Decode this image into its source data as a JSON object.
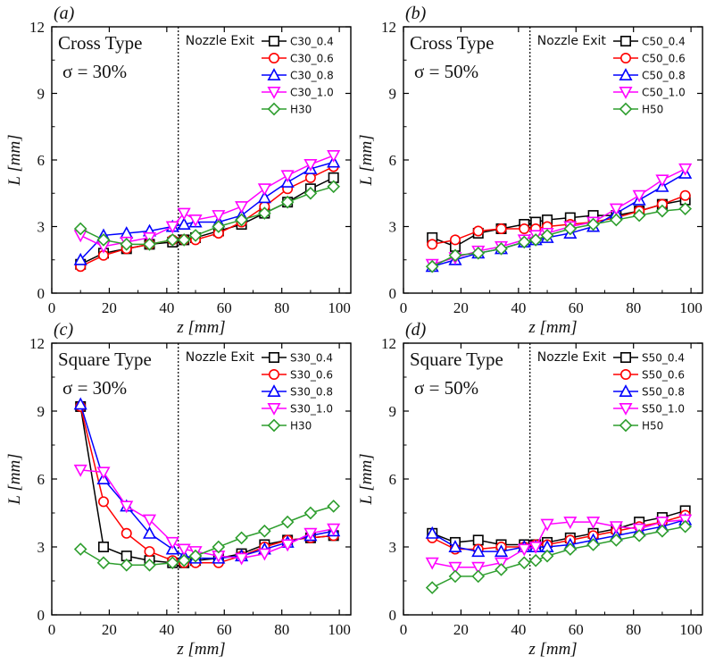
{
  "chart_data": [
    {
      "type": "line",
      "panel_label": "(a)",
      "type_label": "Cross Type",
      "sigma_label": "σ = 30%",
      "annotation": "Nozzle Exit",
      "exit_z": 44,
      "xlabel": "z [mm]",
      "ylabel": "L [mm]",
      "xlim": [
        0,
        104
      ],
      "ylim": [
        0,
        12
      ],
      "xticks": [
        0,
        20,
        40,
        60,
        80,
        100
      ],
      "yticks": [
        0,
        3,
        6,
        9,
        12
      ],
      "legend_position": "top-right",
      "series": [
        {
          "name": "C30_0.4",
          "color": "#000000",
          "marker": "square",
          "x": [
            10,
            18,
            26,
            34,
            42,
            46,
            50,
            58,
            66,
            74,
            82,
            90,
            98
          ],
          "y": [
            1.3,
            1.8,
            2.0,
            2.2,
            2.3,
            2.4,
            2.5,
            2.8,
            3.1,
            3.6,
            4.1,
            4.7,
            5.2
          ]
        },
        {
          "name": "C30_0.6",
          "color": "#ff0000",
          "marker": "circle",
          "x": [
            10,
            18,
            26,
            34,
            42,
            46,
            50,
            58,
            66,
            74,
            82,
            90,
            98
          ],
          "y": [
            1.2,
            1.7,
            2.0,
            2.2,
            2.4,
            2.4,
            2.4,
            2.7,
            3.2,
            3.9,
            4.7,
            5.2,
            5.7
          ]
        },
        {
          "name": "C30_0.8",
          "color": "#0000ff",
          "marker": "triangle-up",
          "x": [
            10,
            18,
            26,
            34,
            42,
            46,
            50,
            58,
            66,
            74,
            82,
            90,
            98
          ],
          "y": [
            1.5,
            2.6,
            2.7,
            2.8,
            3.0,
            3.1,
            3.2,
            3.2,
            3.5,
            4.3,
            5.0,
            5.6,
            5.9
          ]
        },
        {
          "name": "C30_1.0",
          "color": "#ff00ff",
          "marker": "triangle-down",
          "x": [
            10,
            18,
            26,
            34,
            42,
            46,
            50,
            58,
            66,
            74,
            82,
            90,
            98
          ],
          "y": [
            2.6,
            2.1,
            2.3,
            2.5,
            3.0,
            3.6,
            3.3,
            3.5,
            3.9,
            4.7,
            5.3,
            5.8,
            6.2
          ]
        },
        {
          "name": "H30",
          "color": "#2e9e2e",
          "marker": "diamond",
          "x": [
            10,
            18,
            26,
            34,
            42,
            46,
            50,
            58,
            66,
            74,
            82,
            90,
            98
          ],
          "y": [
            2.9,
            2.4,
            2.2,
            2.2,
            2.4,
            2.4,
            2.6,
            3.0,
            3.3,
            3.6,
            4.1,
            4.5,
            4.8
          ]
        }
      ]
    },
    {
      "type": "line",
      "panel_label": "(b)",
      "type_label": "Cross Type",
      "sigma_label": "σ = 50%",
      "annotation": "Nozzle Exit",
      "exit_z": 44,
      "xlabel": "z [mm]",
      "ylabel": "L [mm]",
      "xlim": [
        0,
        104
      ],
      "ylim": [
        0,
        12
      ],
      "xticks": [
        0,
        20,
        40,
        60,
        80,
        100
      ],
      "yticks": [
        0,
        3,
        6,
        9,
        12
      ],
      "legend_position": "top-right",
      "series": [
        {
          "name": "C50_0.4",
          "color": "#000000",
          "marker": "square",
          "x": [
            10,
            18,
            26,
            34,
            42,
            46,
            50,
            58,
            66,
            74,
            82,
            90,
            98
          ],
          "y": [
            2.5,
            2.1,
            2.7,
            2.9,
            3.1,
            3.2,
            3.3,
            3.4,
            3.5,
            3.5,
            3.7,
            4.0,
            4.2
          ]
        },
        {
          "name": "C50_0.6",
          "color": "#ff0000",
          "marker": "circle",
          "x": [
            10,
            18,
            26,
            34,
            42,
            46,
            50,
            58,
            66,
            74,
            82,
            90,
            98
          ],
          "y": [
            2.2,
            2.4,
            2.8,
            2.9,
            2.9,
            2.9,
            3.0,
            3.1,
            3.2,
            3.4,
            3.7,
            4.0,
            4.4
          ]
        },
        {
          "name": "C50_0.8",
          "color": "#0000ff",
          "marker": "triangle-up",
          "x": [
            10,
            18,
            26,
            34,
            42,
            46,
            50,
            58,
            66,
            74,
            82,
            90,
            98
          ],
          "y": [
            1.2,
            1.5,
            1.8,
            2.0,
            2.3,
            2.4,
            2.5,
            2.7,
            3.0,
            3.6,
            4.2,
            4.8,
            5.4
          ]
        },
        {
          "name": "C50_1.0",
          "color": "#ff00ff",
          "marker": "triangle-down",
          "x": [
            10,
            18,
            26,
            34,
            42,
            46,
            50,
            58,
            66,
            74,
            82,
            90,
            98
          ],
          "y": [
            1.3,
            1.6,
            1.9,
            2.1,
            2.4,
            2.6,
            2.7,
            3.0,
            3.2,
            3.8,
            4.4,
            5.1,
            5.6
          ]
        },
        {
          "name": "H50",
          "color": "#2e9e2e",
          "marker": "diamond",
          "x": [
            10,
            18,
            26,
            34,
            42,
            46,
            50,
            58,
            66,
            74,
            82,
            90,
            98
          ],
          "y": [
            1.2,
            1.7,
            1.8,
            2.0,
            2.3,
            2.4,
            2.6,
            2.9,
            3.1,
            3.3,
            3.5,
            3.7,
            3.8
          ]
        }
      ]
    },
    {
      "type": "line",
      "panel_label": "(c)",
      "type_label": "Square Type",
      "sigma_label": "σ = 30%",
      "annotation": "Nozzle Exit",
      "exit_z": 44,
      "xlabel": "z [mm]",
      "ylabel": "L [mm]",
      "xlim": [
        0,
        104
      ],
      "ylim": [
        0,
        12
      ],
      "xticks": [
        0,
        20,
        40,
        60,
        80,
        100
      ],
      "yticks": [
        0,
        3,
        6,
        9,
        12
      ],
      "legend_position": "top-right",
      "series": [
        {
          "name": "S30_0.4",
          "color": "#000000",
          "marker": "square",
          "x": [
            10,
            18,
            26,
            34,
            42,
            46,
            50,
            58,
            66,
            74,
            82,
            90,
            98
          ],
          "y": [
            9.2,
            3.0,
            2.6,
            2.4,
            2.3,
            2.3,
            2.4,
            2.5,
            2.7,
            3.1,
            3.3,
            3.4,
            3.5
          ]
        },
        {
          "name": "S30_0.6",
          "color": "#ff0000",
          "marker": "circle",
          "x": [
            10,
            18,
            26,
            34,
            42,
            46,
            50,
            58,
            66,
            74,
            82,
            90,
            98
          ],
          "y": [
            9.2,
            5.0,
            3.6,
            2.8,
            2.4,
            2.3,
            2.3,
            2.3,
            2.6,
            3.0,
            3.3,
            3.4,
            3.5
          ]
        },
        {
          "name": "S30_0.8",
          "color": "#0000ff",
          "marker": "triangle-up",
          "x": [
            10,
            18,
            26,
            34,
            42,
            46,
            50,
            58,
            66,
            74,
            82,
            90,
            98
          ],
          "y": [
            9.3,
            6.0,
            4.8,
            3.6,
            2.9,
            2.6,
            2.5,
            2.5,
            2.6,
            2.9,
            3.2,
            3.5,
            3.7
          ]
        },
        {
          "name": "S30_1.0",
          "color": "#ff00ff",
          "marker": "triangle-down",
          "x": [
            10,
            18,
            26,
            34,
            42,
            46,
            50,
            58,
            66,
            74,
            82,
            90,
            98
          ],
          "y": [
            6.4,
            6.3,
            4.8,
            4.2,
            3.2,
            2.9,
            2.8,
            2.6,
            2.5,
            2.7,
            3.1,
            3.6,
            3.8
          ]
        },
        {
          "name": "H30",
          "color": "#2e9e2e",
          "marker": "diamond",
          "x": [
            10,
            18,
            26,
            34,
            42,
            46,
            50,
            58,
            66,
            74,
            82,
            90,
            98
          ],
          "y": [
            2.9,
            2.3,
            2.2,
            2.2,
            2.3,
            2.4,
            2.6,
            3.0,
            3.4,
            3.7,
            4.1,
            4.5,
            4.8
          ]
        }
      ]
    },
    {
      "type": "line",
      "panel_label": "(d)",
      "type_label": "Square Type",
      "sigma_label": "σ = 50%",
      "annotation": "Nozzle Exit",
      "exit_z": 44,
      "xlabel": "z [mm]",
      "ylabel": "L [mm]",
      "xlim": [
        0,
        104
      ],
      "ylim": [
        0,
        12
      ],
      "xticks": [
        0,
        20,
        40,
        60,
        80,
        100
      ],
      "yticks": [
        0,
        3,
        6,
        9,
        12
      ],
      "legend_position": "top-right",
      "series": [
        {
          "name": "S50_0.4",
          "color": "#000000",
          "marker": "square",
          "x": [
            10,
            18,
            26,
            34,
            42,
            46,
            50,
            58,
            66,
            74,
            82,
            90,
            98
          ],
          "y": [
            3.6,
            3.2,
            3.3,
            3.1,
            3.1,
            3.1,
            3.2,
            3.4,
            3.6,
            3.8,
            4.1,
            4.3,
            4.6
          ]
        },
        {
          "name": "S50_0.6",
          "color": "#ff0000",
          "marker": "circle",
          "x": [
            10,
            18,
            26,
            34,
            42,
            46,
            50,
            58,
            66,
            74,
            82,
            90,
            98
          ],
          "y": [
            3.4,
            2.9,
            2.9,
            3.0,
            3.0,
            3.1,
            3.1,
            3.3,
            3.5,
            3.7,
            3.9,
            4.1,
            4.4
          ]
        },
        {
          "name": "S50_0.8",
          "color": "#0000ff",
          "marker": "triangle-up",
          "x": [
            10,
            18,
            26,
            34,
            42,
            46,
            50,
            58,
            66,
            74,
            82,
            90,
            98
          ],
          "y": [
            3.6,
            3.0,
            2.8,
            2.8,
            3.0,
            3.0,
            3.0,
            3.1,
            3.3,
            3.5,
            3.7,
            3.9,
            4.2
          ]
        },
        {
          "name": "S50_1.0",
          "color": "#ff00ff",
          "marker": "triangle-down",
          "x": [
            10,
            18,
            26,
            34,
            42,
            46,
            50,
            58,
            66,
            74,
            82,
            90,
            98
          ],
          "y": [
            2.3,
            2.1,
            2.1,
            2.3,
            2.9,
            3.0,
            4.0,
            4.1,
            4.1,
            3.9,
            3.8,
            4.1,
            4.2
          ]
        },
        {
          "name": "H50",
          "color": "#2e9e2e",
          "marker": "diamond",
          "x": [
            10,
            18,
            26,
            34,
            42,
            46,
            50,
            58,
            66,
            74,
            82,
            90,
            98
          ],
          "y": [
            1.2,
            1.7,
            1.7,
            2.0,
            2.3,
            2.4,
            2.6,
            2.9,
            3.1,
            3.3,
            3.5,
            3.7,
            3.9
          ]
        }
      ]
    }
  ]
}
